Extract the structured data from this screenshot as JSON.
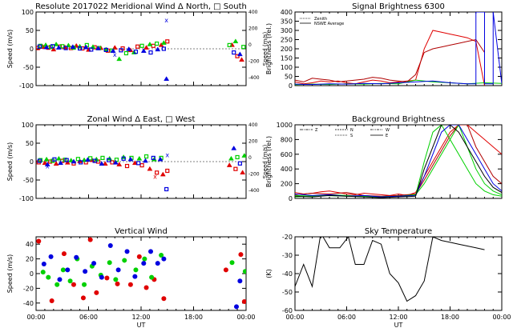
{
  "colors": {
    "red": "#e00000",
    "green": "#00d000",
    "blue": "#0000e0",
    "darkred": "#b00000",
    "black": "#000000"
  },
  "chart_data": [
    {
      "id": "meridional",
      "type": "scatter",
      "title": "Resolute  2017022    Meridional Wind   Δ North, □ South",
      "ylabel": "Speed (m/s)",
      "ylabel_right": "Speed (m/s)",
      "ylim": [
        -100,
        100
      ],
      "yticks": [
        -100,
        -50,
        0,
        50,
        100
      ],
      "ylim_right": [
        -500,
        400
      ],
      "yticks_right": [
        -400,
        -200,
        0,
        200,
        400
      ],
      "xlim": [
        0,
        24
      ],
      "series": [
        {
          "name": "red",
          "color": "#e00000",
          "x": [
            0.2,
            0.8,
            1.4,
            2.0,
            2.7,
            3.3,
            4.0,
            4.6,
            5.3,
            6.0,
            6.7,
            7.4,
            8.2,
            9.0,
            9.9,
            10.8,
            11.6,
            12.6,
            13.4,
            14.3,
            15.0,
            22.4,
            23.0,
            23.5
          ],
          "y": [
            2,
            5,
            3,
            -2,
            6,
            4,
            2,
            8,
            1,
            -3,
            4,
            2,
            -5,
            3,
            1,
            -4,
            6,
            3,
            8,
            10,
            20,
            10,
            -20,
            -30
          ]
        },
        {
          "name": "green",
          "color": "#00d000",
          "x": [
            0.5,
            1.1,
            1.7,
            2.3,
            3.0,
            3.7,
            4.3,
            5.0,
            5.8,
            6.5,
            7.2,
            8.0,
            8.7,
            9.5,
            10.3,
            11.2,
            12.1,
            13.0,
            13.8,
            14.6,
            22.1,
            22.8,
            23.7
          ],
          "y": [
            8,
            10,
            5,
            12,
            7,
            9,
            3,
            6,
            10,
            5,
            2,
            -2,
            -5,
            -28,
            -12,
            -10,
            8,
            12,
            14,
            16,
            10,
            20,
            5
          ]
        },
        {
          "name": "blue",
          "color": "#0000e0",
          "x": [
            0.4,
            1.2,
            1.9,
            2.6,
            3.4,
            4.2,
            5.0,
            5.7,
            6.3,
            7.1,
            8.0,
            8.8,
            9.7,
            10.6,
            11.4,
            12.3,
            13.1,
            13.9,
            14.6,
            14.9,
            22.6,
            23.3
          ],
          "y": [
            6,
            4,
            7,
            3,
            2,
            5,
            1,
            4,
            -2,
            1,
            -3,
            -6,
            -4,
            -1,
            -8,
            -6,
            -10,
            -2,
            0,
            -82,
            -10,
            -15
          ]
        }
      ],
      "annotations": [
        {
          "text": "x",
          "color": "#0000e0",
          "x": 14.9,
          "y": 78
        },
        {
          "text": "x",
          "color": "#0000e0",
          "x": 9.0,
          "y": -15
        }
      ]
    },
    {
      "id": "signal",
      "type": "line",
      "title": "Signal Brightness        6300",
      "ylabel": "Brightness (rel.)",
      "ylim": [
        0,
        400
      ],
      "yticks": [
        0,
        50,
        100,
        150,
        200,
        250,
        300,
        350,
        400
      ],
      "xlim": [
        0,
        24
      ],
      "legend": [
        "Zenith",
        "NSWE Average"
      ],
      "series": [
        {
          "name": "red-1",
          "color": "#e00000",
          "x": [
            0,
            1,
            2,
            3,
            4,
            5,
            6,
            7,
            8,
            9,
            10,
            11,
            12,
            13,
            14,
            15,
            16,
            17,
            18,
            19,
            20,
            21,
            22
          ],
          "y": [
            20,
            10,
            15,
            25,
            20,
            25,
            15,
            10,
            20,
            30,
            25,
            15,
            20,
            25,
            30,
            200,
            300,
            290,
            280,
            270,
            260,
            240,
            0
          ]
        },
        {
          "name": "red-2",
          "color": "#b00000",
          "x": [
            0,
            1,
            2,
            3,
            4,
            5,
            6,
            7,
            8,
            9,
            10,
            11,
            12,
            13,
            14,
            15,
            16,
            17,
            18,
            19,
            20,
            21,
            22
          ],
          "y": [
            30,
            20,
            40,
            35,
            30,
            20,
            25,
            30,
            35,
            45,
            40,
            30,
            25,
            20,
            60,
            180,
            200,
            210,
            220,
            230,
            240,
            250,
            180
          ]
        },
        {
          "name": "green-1",
          "color": "#00d000",
          "x": [
            0,
            2,
            4,
            6,
            8,
            10,
            12,
            14,
            16,
            18,
            20,
            22,
            24
          ],
          "y": [
            5,
            8,
            6,
            10,
            8,
            12,
            10,
            30,
            20,
            15,
            10,
            15,
            12
          ]
        },
        {
          "name": "blue-1",
          "color": "#0000e0",
          "x": [
            0,
            2,
            4,
            6,
            8,
            10,
            12,
            14,
            16,
            18,
            20,
            21,
            21,
            22,
            22,
            23,
            23,
            24
          ],
          "y": [
            8,
            6,
            10,
            8,
            12,
            10,
            15,
            20,
            25,
            15,
            10,
            10,
            400,
            400,
            10,
            10,
            400,
            10
          ]
        }
      ]
    },
    {
      "id": "zonal",
      "type": "scatter",
      "title": "Zonal Wind      Δ East, □ West",
      "ylabel": "Speed (m/s)",
      "ylabel_right": "Speed (m/s)",
      "ylim": [
        -100,
        100
      ],
      "yticks": [
        -100,
        -50,
        0,
        50,
        100
      ],
      "ylim_right": [
        -500,
        400
      ],
      "yticks_right": [
        -400,
        -200,
        0,
        200,
        400
      ],
      "xlim": [
        0,
        24
      ],
      "series": [
        {
          "name": "red",
          "color": "#e00000",
          "x": [
            0.3,
            1.0,
            1.6,
            2.3,
            3.0,
            3.6,
            4.3,
            5.0,
            5.7,
            6.4,
            7.1,
            7.9,
            8.7,
            9.5,
            10.4,
            11.3,
            12.1,
            13.0,
            13.8,
            14.5,
            15.0,
            22.1,
            22.8,
            23.6
          ],
          "y": [
            -2,
            -4,
            0,
            -6,
            2,
            -3,
            -5,
            1,
            -2,
            4,
            0,
            -6,
            -2,
            -8,
            -12,
            -4,
            -10,
            -20,
            -30,
            -35,
            -25,
            -10,
            -20,
            -30
          ]
        },
        {
          "name": "green",
          "color": "#00d000",
          "x": [
            0.5,
            1.2,
            1.9,
            2.6,
            3.3,
            4.0,
            4.8,
            5.5,
            6.2,
            6.9,
            7.6,
            8.4,
            9.2,
            10.0,
            10.9,
            11.8,
            12.6,
            13.5,
            14.3,
            22.3,
            23.0,
            23.8
          ],
          "y": [
            4,
            6,
            2,
            8,
            5,
            3,
            7,
            4,
            9,
            6,
            10,
            8,
            5,
            12,
            10,
            8,
            14,
            6,
            10,
            8,
            12,
            16
          ]
        },
        {
          "name": "blue",
          "color": "#0000e0",
          "x": [
            0.4,
            1.3,
            2.1,
            2.8,
            3.5,
            4.3,
            5.1,
            5.9,
            6.7,
            7.5,
            8.3,
            9.1,
            10.0,
            10.8,
            11.7,
            12.5,
            13.4,
            14.2,
            14.9,
            22.6,
            23.3
          ],
          "y": [
            2,
            -8,
            6,
            -4,
            4,
            0,
            -2,
            5,
            2,
            -6,
            4,
            -3,
            8,
            6,
            -4,
            2,
            10,
            6,
            -75,
            36,
            -5
          ]
        }
      ],
      "annotations": [
        {
          "text": "x",
          "color": "#0000e0",
          "x": 15.0,
          "y": 18
        },
        {
          "text": "x",
          "color": "#0000e0",
          "x": 1.3,
          "y": -12
        },
        {
          "text": "x",
          "color": "#e00000",
          "x": 13.6,
          "y": -40
        }
      ]
    },
    {
      "id": "background",
      "type": "line",
      "title": "Background Brightness",
      "ylabel": "Brightness (rel.)",
      "ylim": [
        0,
        1000
      ],
      "yticks": [
        0,
        200,
        400,
        600,
        800,
        1000
      ],
      "xlim": [
        0,
        24
      ],
      "legend": [
        "Z",
        "N",
        "S",
        "W",
        "E"
      ],
      "series": [
        {
          "name": "red-a",
          "color": "#e00000",
          "x": [
            0,
            1,
            2,
            3,
            4,
            5,
            6,
            7,
            8,
            9,
            10,
            11,
            12,
            13,
            14,
            15,
            16,
            17,
            18,
            19,
            20,
            21,
            22,
            23,
            24
          ],
          "y": [
            80,
            60,
            70,
            90,
            100,
            80,
            60,
            50,
            70,
            60,
            50,
            40,
            60,
            40,
            80,
            300,
            500,
            700,
            900,
            1000,
            1000,
            900,
            800,
            700,
            600
          ]
        },
        {
          "name": "red-b",
          "color": "#b00000",
          "x": [
            0,
            2,
            4,
            6,
            8,
            10,
            12,
            14,
            15,
            16,
            17,
            18,
            19,
            20,
            21,
            22,
            23,
            24
          ],
          "y": [
            50,
            70,
            60,
            80,
            40,
            30,
            40,
            60,
            250,
            450,
            650,
            850,
            1000,
            1000,
            700,
            500,
            300,
            200
          ]
        },
        {
          "name": "green-a",
          "color": "#00d000",
          "x": [
            0,
            2,
            4,
            6,
            8,
            10,
            12,
            14,
            15,
            16,
            17,
            18,
            19,
            20,
            21,
            22,
            23,
            24
          ],
          "y": [
            40,
            30,
            50,
            40,
            30,
            20,
            30,
            50,
            200,
            400,
            600,
            800,
            1000,
            700,
            400,
            200,
            100,
            50
          ]
        },
        {
          "name": "green-b",
          "color": "#00d000",
          "x": [
            0,
            3,
            6,
            9,
            12,
            14,
            15,
            16,
            17,
            18,
            19,
            20,
            21,
            22,
            23,
            24
          ],
          "y": [
            20,
            40,
            30,
            20,
            30,
            40,
            500,
            900,
            1000,
            800,
            600,
            400,
            200,
            100,
            50,
            30
          ]
        },
        {
          "name": "blue-a",
          "color": "#0000e0",
          "x": [
            0,
            2,
            4,
            6,
            8,
            10,
            12,
            14,
            15,
            16,
            17,
            18,
            19,
            20,
            21,
            22,
            23,
            24
          ],
          "y": [
            60,
            40,
            50,
            30,
            40,
            20,
            30,
            40,
            300,
            600,
            900,
            1000,
            1000,
            800,
            600,
            400,
            200,
            100
          ]
        },
        {
          "name": "black-a",
          "color": "#000000",
          "x": [
            0,
            2,
            4,
            6,
            8,
            10,
            12,
            14,
            15,
            16,
            17,
            18,
            19,
            20,
            21,
            22,
            23,
            24
          ],
          "y": [
            30,
            20,
            40,
            30,
            20,
            10,
            20,
            30,
            400,
            700,
            1000,
            1000,
            900,
            700,
            500,
            300,
            150,
            80
          ]
        }
      ]
    },
    {
      "id": "vertical",
      "type": "scatter",
      "title": "Vertical Wind",
      "ylabel": "Speed (m/s)",
      "xlabel": "UT",
      "ylim": [
        -50,
        50
      ],
      "yticks": [
        -40,
        -20,
        0,
        20,
        40
      ],
      "xlim": [
        0,
        24
      ],
      "xticks": [
        0,
        6,
        12,
        18,
        24
      ],
      "xticklabels": [
        "00:00",
        "06:00",
        "12:00",
        "18:00",
        "00:00"
      ],
      "series": [
        {
          "name": "red",
          "color": "#e00000",
          "x": [
            0.3,
            1.8,
            3.2,
            4.3,
            5.4,
            6.2,
            6.9,
            8.1,
            9.3,
            10.8,
            11.8,
            12.6,
            13.5,
            14.6,
            21.7,
            23.4,
            23.8
          ],
          "y": [
            44,
            -37,
            27,
            -15,
            -33,
            46,
            -26,
            -6,
            -14,
            -15,
            23,
            -19,
            -8,
            -34,
            5,
            26,
            -38
          ]
        },
        {
          "name": "green",
          "color": "#00d000",
          "x": [
            0.8,
            1.4,
            2.4,
            3.1,
            3.9,
            4.7,
            5.5,
            6.4,
            7.4,
            8.4,
            9.1,
            10.1,
            11.4,
            12.4,
            13.2,
            14.3,
            22.4,
            23.9
          ],
          "y": [
            2,
            -5,
            -15,
            5,
            -10,
            20,
            -15,
            10,
            -2,
            15,
            -8,
            18,
            5,
            20,
            -5,
            25,
            15,
            3
          ]
        },
        {
          "name": "blue",
          "color": "#0000e0",
          "x": [
            0.9,
            1.7,
            2.7,
            3.6,
            4.6,
            5.6,
            6.6,
            7.5,
            8.5,
            9.4,
            10.4,
            11.3,
            12.3,
            13.1,
            13.9,
            14.6,
            22.9,
            23.3
          ],
          "y": [
            13,
            23,
            -8,
            5,
            22,
            3,
            14,
            -5,
            38,
            5,
            30,
            -4,
            14,
            30,
            14,
            20,
            -45,
            -10
          ]
        }
      ]
    },
    {
      "id": "sky",
      "type": "line",
      "title": "Sky Temperature",
      "ylabel": "(K)",
      "xlabel": "UT",
      "ylim": [
        -60,
        -20
      ],
      "yticks": [
        -60,
        -50,
        -40,
        -30,
        -20
      ],
      "xlim": [
        0,
        24
      ],
      "xticks": [
        0,
        6,
        12,
        18,
        24
      ],
      "xticklabels": [
        "00:00",
        "06:00",
        "12:00",
        "18:00",
        "00:00"
      ],
      "series": [
        {
          "name": "sky-temp",
          "color": "#000000",
          "x": [
            0,
            1.0,
            2.0,
            3.0,
            4.0,
            5.2,
            6.2,
            7.0,
            8.0,
            9.0,
            10.0,
            11.0,
            12.0,
            13.0,
            14.0,
            15.0,
            16.0,
            17.0,
            18.0,
            19.0,
            20.0,
            21.0,
            22.0
          ],
          "y": [
            -47,
            -35,
            -47,
            -18,
            -26,
            -26,
            -20,
            -35,
            -35,
            -22,
            -24,
            -40,
            -45,
            -55,
            -52,
            -44,
            -20,
            -22,
            -23,
            -24,
            -25,
            -26,
            -27
          ]
        }
      ]
    }
  ]
}
